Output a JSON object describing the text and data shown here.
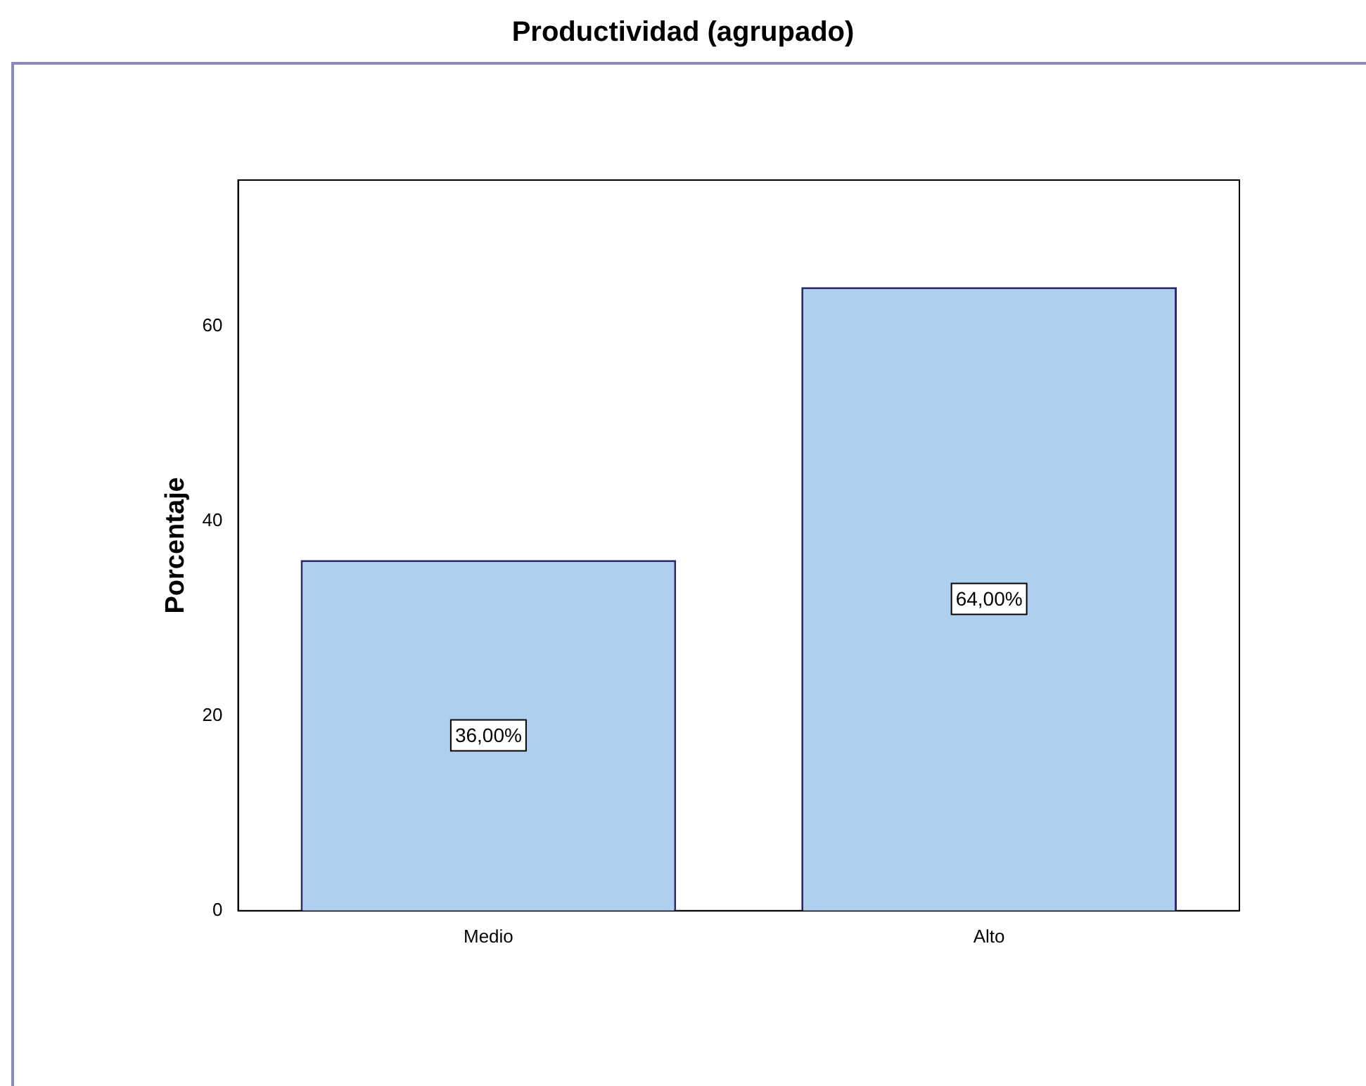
{
  "chart_data": {
    "type": "bar",
    "title": "Productividad (agrupado)",
    "ylabel": "Porcentaje",
    "categories": [
      "Medio",
      "Alto"
    ],
    "values": [
      36,
      64
    ],
    "color": "#aed0ee",
    "value_labels": [
      "36,00%",
      "64,00%"
    ],
    "ylim": [
      0,
      75
    ],
    "yticks": [
      0,
      20,
      40,
      60
    ],
    "grid": false,
    "legend": false
  }
}
